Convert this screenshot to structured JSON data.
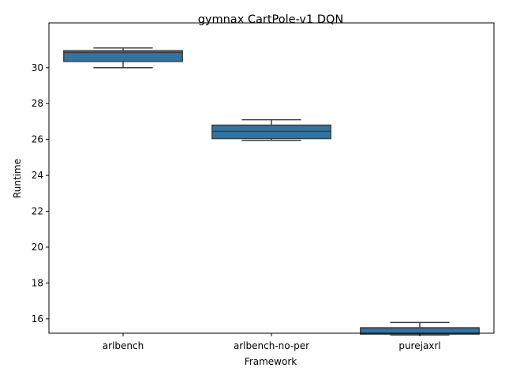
{
  "chart_data": {
    "type": "box",
    "title": "gymnax CartPole-v1 DQN",
    "xlabel": "Framework",
    "ylabel": "Runtime",
    "categories": [
      "arlbench",
      "arlbench-no-per",
      "purejaxrl"
    ],
    "boxes": [
      {
        "whisker_low": 30.0,
        "q1": 30.35,
        "median": 30.85,
        "q3": 30.95,
        "whisker_high": 31.1
      },
      {
        "whisker_low": 25.95,
        "q1": 26.05,
        "median": 26.45,
        "q3": 26.8,
        "whisker_high": 27.1
      },
      {
        "whisker_low": 15.1,
        "q1": 15.15,
        "median": 15.5,
        "q3": 15.5,
        "whisker_high": 15.8
      }
    ],
    "ylim": [
      15.2,
      32.5
    ],
    "yticks": [
      16,
      18,
      20,
      22,
      24,
      26,
      28,
      30
    ],
    "grid": false,
    "box_color": "#3274a1",
    "line_color": "#3f3f3f"
  }
}
